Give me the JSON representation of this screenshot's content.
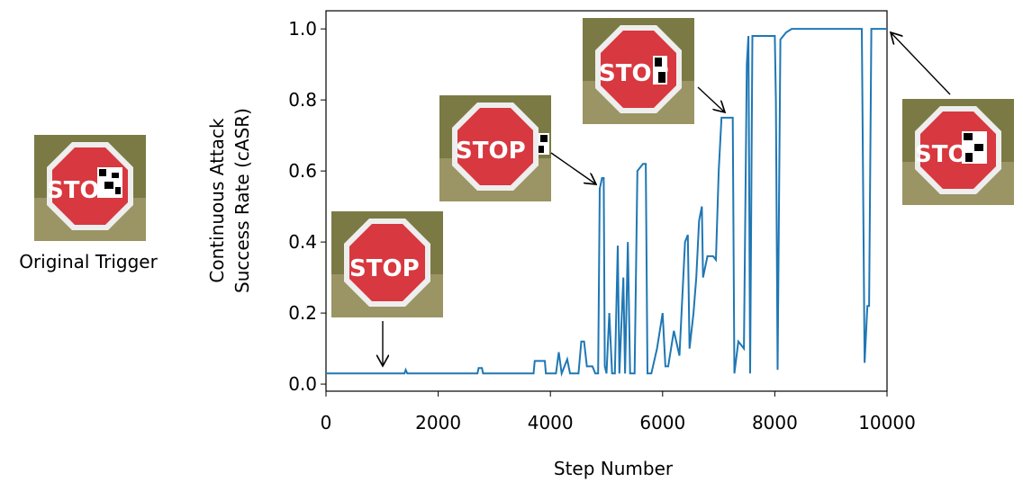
{
  "trigger_label": "Original Trigger",
  "sign_text": "STOP",
  "chart_data": {
    "type": "line",
    "xlabel": "Step Number",
    "ylabel": [
      "Continuous Attack",
      "Success Rate (cASR)"
    ],
    "color": "#1f77b4",
    "x": [
      0,
      1400,
      1420,
      1450,
      2700,
      2720,
      2780,
      2800,
      3700,
      3720,
      3900,
      3920,
      4100,
      4150,
      4200,
      4300,
      4350,
      4500,
      4550,
      4600,
      4650,
      4750,
      4800,
      4850,
      4880,
      4920,
      4950,
      4970,
      5000,
      5050,
      5100,
      5150,
      5200,
      5230,
      5300,
      5330,
      5380,
      5420,
      5500,
      5550,
      5650,
      5700,
      5730,
      5800,
      5900,
      6000,
      6050,
      6100,
      6200,
      6300,
      6400,
      6450,
      6480,
      6550,
      6600,
      6650,
      6700,
      6720,
      6800,
      6900,
      6950,
      7000,
      7050,
      7100,
      7250,
      7280,
      7350,
      7450,
      7500,
      7530,
      7560,
      7600,
      7700,
      8000,
      8020,
      8050,
      8100,
      8200,
      8300,
      9550,
      9600,
      9650,
      9680,
      9720,
      10000
    ],
    "values": [
      0.03,
      0.03,
      0.04,
      0.03,
      0.03,
      0.045,
      0.045,
      0.03,
      0.03,
      0.065,
      0.065,
      0.03,
      0.03,
      0.09,
      0.03,
      0.07,
      0.03,
      0.03,
      0.12,
      0.12,
      0.05,
      0.05,
      0.03,
      0.03,
      0.55,
      0.58,
      0.58,
      0.05,
      0.03,
      0.2,
      0.03,
      0.03,
      0.39,
      0.03,
      0.3,
      0.03,
      0.4,
      0.03,
      0.03,
      0.6,
      0.62,
      0.62,
      0.03,
      0.03,
      0.1,
      0.2,
      0.05,
      0.05,
      0.15,
      0.08,
      0.4,
      0.42,
      0.1,
      0.2,
      0.3,
      0.46,
      0.5,
      0.3,
      0.36,
      0.36,
      0.35,
      0.6,
      0.75,
      0.75,
      0.75,
      0.03,
      0.12,
      0.1,
      0.9,
      0.98,
      0.03,
      0.98,
      0.98,
      0.98,
      0.8,
      0.04,
      0.97,
      0.99,
      1.0,
      1.0,
      0.06,
      0.22,
      0.22,
      1.0,
      1.0
    ],
    "xlim": [
      0,
      10000
    ],
    "ylim": [
      -0.02,
      1.051
    ],
    "xticks": [
      0,
      2000,
      4000,
      6000,
      8000,
      10000
    ],
    "yticks": [
      {
        "value": 0,
        "label": "0.0"
      },
      0.2,
      0.4,
      0.6,
      0.8,
      {
        "value": 1,
        "label": "1.0"
      }
    ]
  }
}
